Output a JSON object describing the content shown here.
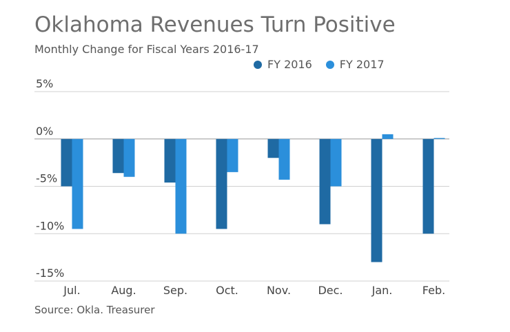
{
  "chart_data": {
    "type": "bar",
    "title": "Oklahoma Revenues Turn Positive",
    "subtitle": "Monthly Change for Fiscal Years 2016-17",
    "source": "Source: Okla. Treasurer",
    "categories": [
      "Jul.",
      "Aug.",
      "Sep.",
      "Oct.",
      "Nov.",
      "Dec.",
      "Jan.",
      "Feb."
    ],
    "series": [
      {
        "name": "FY 2016",
        "color": "#1f6aa3",
        "values": [
          -5.0,
          -3.6,
          -4.6,
          -9.5,
          -2.0,
          -9.0,
          -13.0,
          -10.0
        ]
      },
      {
        "name": "FY 2017",
        "color": "#2b8fdb",
        "values": [
          -9.5,
          -4.0,
          -10.0,
          -3.5,
          -4.3,
          -5.0,
          0.5,
          0.1
        ]
      }
    ],
    "ylim": [
      -15,
      5
    ],
    "yticks": [
      5,
      0,
      -5,
      -10,
      -15
    ],
    "ytick_labels": [
      "5%",
      "0%",
      "-5%",
      "-10%",
      "-15%"
    ],
    "legend_position": "top-right",
    "grid": true
  }
}
